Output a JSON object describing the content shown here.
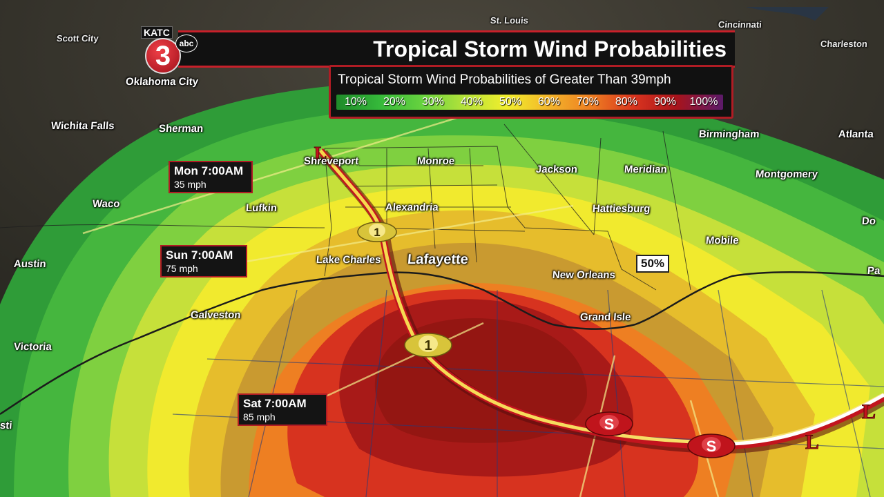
{
  "header": {
    "title": "Tropical Storm Wind Probabilities"
  },
  "logo": {
    "katc": "KATC",
    "number": "3",
    "abc": "abc"
  },
  "legend": {
    "title": "Tropical Storm Wind Probabilities of Greater Than 39mph",
    "labels": [
      "10%",
      "20%",
      "30%",
      "40%",
      "50%",
      "60%",
      "70%",
      "80%",
      "90%",
      "100%"
    ],
    "colors": [
      "#1f8a2a",
      "#35b83a",
      "#66d23f",
      "#b4e23a",
      "#f2ee2c",
      "#f3b52a",
      "#ee7e22",
      "#d9341e",
      "#a8141c",
      "#5b1a6a"
    ]
  },
  "timeline": {
    "mon": {
      "time": "Mon 7:00AM",
      "speed": "35 mph"
    },
    "sun": {
      "time": "Sun 7:00AM",
      "speed": "75 mph"
    },
    "sat": {
      "time": "Sat 7:00AM",
      "speed": "85 mph"
    }
  },
  "contour_label": "50%",
  "storm_markers": {
    "cat1_a": "1",
    "cat1_b": "1",
    "ts_a": "S",
    "ts_b": "S",
    "low_a": "L",
    "low_b": "L",
    "low_c": "L"
  },
  "cities": {
    "st_louis": "St. Louis",
    "cincinnati": "Cincinnati",
    "scott_city": "Scott City",
    "charleston": "Charleston",
    "oklahoma_city": "Oklahoma City",
    "wichita_falls": "Wichita Falls",
    "sherman": "Sherman",
    "birmingham": "Birmingham",
    "atlanta": "Atlanta",
    "shreveport": "Shreveport",
    "monroe": "Monroe",
    "jackson": "Jackson",
    "meridian": "Meridian",
    "montgomery": "Montgomery",
    "waco": "Waco",
    "lufkin": "Lufkin",
    "alexandria": "Alexandria",
    "hattiesburg": "Hattiesburg",
    "dothan": "Do",
    "mobile": "Mobile",
    "austin": "Austin",
    "lake_charles": "Lake Charles",
    "lafayette": "Lafayette",
    "new_orleans": "New Orleans",
    "panama": "Pa",
    "galveston": "Galveston",
    "grand_isle": "Grand Isle",
    "victoria": "Victoria",
    "corpus": "sti"
  }
}
